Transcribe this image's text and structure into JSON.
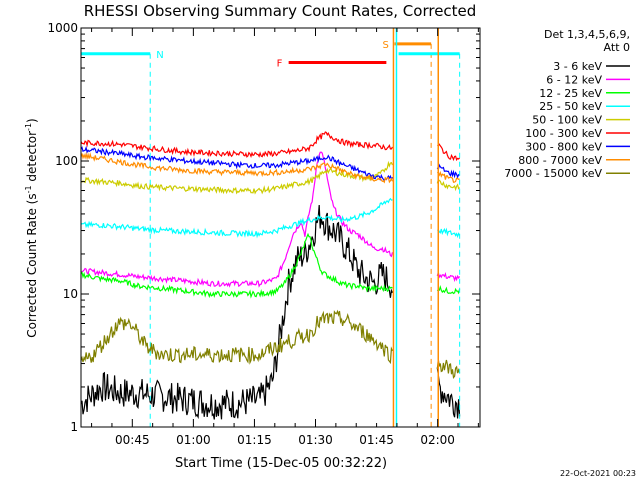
{
  "chart_data": {
    "type": "line",
    "title": "RHESSI Observing Summary Count Rates, Corrected",
    "xlabel": "Start Time (15-Dec-05 00:32:22)",
    "ylabel": "Corrected Count Rate (s⁻¹ detector⁻¹)",
    "ylabel_main": "Corrected Count Rate (s",
    "ylabel_mid": " detector",
    "ylabel_sup": "-1",
    "ylabel_end": ")",
    "yscale": "log",
    "ylim": [
      1,
      1000
    ],
    "xlim_minutes": [
      0,
      98
    ],
    "y_ticks": [
      {
        "value": 1,
        "label": "1"
      },
      {
        "value": 10,
        "label": "10"
      },
      {
        "value": 100,
        "label": "100"
      },
      {
        "value": 1000,
        "label": "1000"
      }
    ],
    "x_ticks": [
      {
        "minute": 12.6,
        "label": "00:45"
      },
      {
        "minute": 27.6,
        "label": "01:00"
      },
      {
        "minute": 42.6,
        "label": "01:15"
      },
      {
        "minute": 57.6,
        "label": "01:30"
      },
      {
        "minute": 72.6,
        "label": "01:45"
      },
      {
        "minute": 87.6,
        "label": "02:00"
      }
    ],
    "legend_title": [
      "Det 1,3,4,5,6,9,",
      "Att 0"
    ],
    "legend_placement": "right",
    "footer": "22-Oct-2021 00:23",
    "night_gaps": [
      [
        76.5,
        87.5
      ]
    ],
    "series": [
      {
        "name": "3 - 6 keV",
        "color": "#000000",
        "points": [
          [
            0,
            1.5
          ],
          [
            5,
            2.0
          ],
          [
            10,
            1.8
          ],
          [
            14,
            1.8
          ],
          [
            20,
            1.7
          ],
          [
            26,
            1.6
          ],
          [
            32,
            1.5
          ],
          [
            38,
            1.5
          ],
          [
            44,
            1.6
          ],
          [
            47,
            2.2
          ],
          [
            49,
            5
          ],
          [
            51,
            12
          ],
          [
            53,
            18
          ],
          [
            55,
            20
          ],
          [
            57,
            28
          ],
          [
            58,
            35
          ],
          [
            59,
            40
          ],
          [
            60,
            35
          ],
          [
            61,
            32
          ],
          [
            62,
            30
          ],
          [
            64,
            25
          ],
          [
            66,
            20
          ],
          [
            68,
            15
          ],
          [
            70,
            13
          ],
          [
            72,
            12
          ],
          [
            73,
            13
          ],
          [
            74,
            14
          ],
          [
            75,
            13
          ],
          [
            76,
            12
          ],
          [
            88,
            2.0
          ],
          [
            91,
            1.6
          ],
          [
            93,
            1.5
          ]
        ]
      },
      {
        "name": "6 - 12 keV",
        "color": "#ff00ff",
        "points": [
          [
            0,
            15
          ],
          [
            5,
            14.5
          ],
          [
            10,
            14
          ],
          [
            14,
            13.5
          ],
          [
            20,
            13
          ],
          [
            26,
            12.5
          ],
          [
            32,
            12
          ],
          [
            38,
            12
          ],
          [
            44,
            12
          ],
          [
            48,
            13
          ],
          [
            50,
            18
          ],
          [
            52,
            28
          ],
          [
            54,
            35
          ],
          [
            55,
            28
          ],
          [
            56,
            40
          ],
          [
            57,
            55
          ],
          [
            58,
            100
          ],
          [
            59,
            120
          ],
          [
            60,
            90
          ],
          [
            61,
            60
          ],
          [
            62,
            45
          ],
          [
            64,
            35
          ],
          [
            66,
            30
          ],
          [
            68,
            28
          ],
          [
            70,
            25
          ],
          [
            72,
            22
          ],
          [
            74,
            22
          ],
          [
            76,
            20
          ],
          [
            88,
            14
          ],
          [
            90,
            13.5
          ],
          [
            93,
            13
          ]
        ]
      },
      {
        "name": "12 - 25 keV",
        "color": "#00ff00",
        "points": [
          [
            0,
            14
          ],
          [
            5,
            13
          ],
          [
            10,
            12.5
          ],
          [
            14,
            11.5
          ],
          [
            20,
            11
          ],
          [
            26,
            10.5
          ],
          [
            32,
            10
          ],
          [
            38,
            10
          ],
          [
            44,
            10
          ],
          [
            48,
            10.5
          ],
          [
            50,
            12
          ],
          [
            52,
            15
          ],
          [
            54,
            20
          ],
          [
            55,
            24
          ],
          [
            56,
            28
          ],
          [
            57,
            22
          ],
          [
            58,
            18
          ],
          [
            59,
            15
          ],
          [
            60,
            14
          ],
          [
            62,
            13
          ],
          [
            64,
            12
          ],
          [
            66,
            11.5
          ],
          [
            68,
            11.5
          ],
          [
            70,
            11
          ],
          [
            72,
            11
          ],
          [
            74,
            11
          ],
          [
            76,
            11
          ],
          [
            88,
            11
          ],
          [
            90,
            10.5
          ],
          [
            93,
            10.5
          ]
        ]
      },
      {
        "name": "25 - 50 keV",
        "color": "#00ffff",
        "points": [
          [
            0,
            33
          ],
          [
            5,
            33
          ],
          [
            10,
            32
          ],
          [
            14,
            31
          ],
          [
            20,
            30
          ],
          [
            26,
            29.5
          ],
          [
            32,
            29
          ],
          [
            38,
            28.5
          ],
          [
            44,
            28.5
          ],
          [
            48,
            30
          ],
          [
            52,
            33
          ],
          [
            56,
            36
          ],
          [
            60,
            38
          ],
          [
            62,
            37
          ],
          [
            64,
            36
          ],
          [
            66,
            37
          ],
          [
            68,
            38
          ],
          [
            70,
            40
          ],
          [
            72,
            43
          ],
          [
            74,
            47
          ],
          [
            76,
            52
          ],
          [
            88,
            30
          ],
          [
            90,
            29
          ],
          [
            93,
            28
          ]
        ]
      },
      {
        "name": "50 - 100 keV",
        "color": "#cccc00",
        "points": [
          [
            0,
            72
          ],
          [
            5,
            70
          ],
          [
            10,
            68
          ],
          [
            14,
            65
          ],
          [
            20,
            63
          ],
          [
            26,
            62
          ],
          [
            32,
            61
          ],
          [
            38,
            60
          ],
          [
            44,
            60
          ],
          [
            48,
            62
          ],
          [
            52,
            66
          ],
          [
            56,
            70
          ],
          [
            58,
            75
          ],
          [
            60,
            85
          ],
          [
            62,
            83
          ],
          [
            64,
            80
          ],
          [
            66,
            78
          ],
          [
            68,
            76
          ],
          [
            70,
            74
          ],
          [
            72,
            75
          ],
          [
            74,
            82
          ],
          [
            76,
            98
          ],
          [
            88,
            70
          ],
          [
            90,
            65
          ],
          [
            93,
            63
          ]
        ]
      },
      {
        "name": "100 - 300 keV",
        "color": "#ff0000",
        "points": [
          [
            0,
            137
          ],
          [
            5,
            136
          ],
          [
            10,
            133
          ],
          [
            14,
            128
          ],
          [
            20,
            122
          ],
          [
            26,
            117
          ],
          [
            32,
            115
          ],
          [
            38,
            113
          ],
          [
            44,
            112
          ],
          [
            48,
            114
          ],
          [
            52,
            118
          ],
          [
            56,
            125
          ],
          [
            58,
            145
          ],
          [
            60,
            160
          ],
          [
            62,
            150
          ],
          [
            64,
            140
          ],
          [
            66,
            135
          ],
          [
            68,
            133
          ],
          [
            70,
            132
          ],
          [
            72,
            131
          ],
          [
            74,
            128
          ],
          [
            76,
            125
          ],
          [
            88,
            130
          ],
          [
            90,
            110
          ],
          [
            93,
            103
          ]
        ]
      },
      {
        "name": "300 - 800 keV",
        "color": "#0000ff",
        "points": [
          [
            0,
            122
          ],
          [
            5,
            118
          ],
          [
            10,
            113
          ],
          [
            14,
            108
          ],
          [
            20,
            104
          ],
          [
            26,
            100
          ],
          [
            32,
            97
          ],
          [
            38,
            94
          ],
          [
            44,
            92
          ],
          [
            48,
            93
          ],
          [
            52,
            97
          ],
          [
            56,
            100
          ],
          [
            58,
            103
          ],
          [
            60,
            108
          ],
          [
            62,
            102
          ],
          [
            64,
            95
          ],
          [
            66,
            90
          ],
          [
            68,
            85
          ],
          [
            70,
            80
          ],
          [
            72,
            77
          ],
          [
            74,
            75
          ],
          [
            76,
            74
          ],
          [
            88,
            90
          ],
          [
            90,
            82
          ],
          [
            93,
            78
          ]
        ]
      },
      {
        "name": "800 - 7000 keV",
        "color": "#ff8c00",
        "points": [
          [
            0,
            110
          ],
          [
            5,
            104
          ],
          [
            10,
            98
          ],
          [
            14,
            93
          ],
          [
            20,
            88
          ],
          [
            26,
            85
          ],
          [
            32,
            83
          ],
          [
            38,
            82
          ],
          [
            44,
            81
          ],
          [
            48,
            82
          ],
          [
            52,
            84
          ],
          [
            56,
            87
          ],
          [
            58,
            90
          ],
          [
            60,
            95
          ],
          [
            62,
            90
          ],
          [
            64,
            85
          ],
          [
            66,
            80
          ],
          [
            68,
            77
          ],
          [
            70,
            75
          ],
          [
            72,
            73
          ],
          [
            74,
            72
          ],
          [
            76,
            72
          ],
          [
            88,
            80
          ],
          [
            90,
            74
          ],
          [
            93,
            70
          ]
        ]
      },
      {
        "name": "7000 - 15000 keV",
        "color": "#808000",
        "points": [
          [
            0,
            3.0
          ],
          [
            3,
            3.5
          ],
          [
            6,
            4.5
          ],
          [
            9,
            6
          ],
          [
            12,
            6
          ],
          [
            14,
            5
          ],
          [
            16,
            4
          ],
          [
            20,
            3.5
          ],
          [
            26,
            3.5
          ],
          [
            32,
            3.5
          ],
          [
            38,
            3.5
          ],
          [
            44,
            3.5
          ],
          [
            48,
            4.0
          ],
          [
            52,
            4.5
          ],
          [
            56,
            5
          ],
          [
            58,
            6
          ],
          [
            60,
            6.5
          ],
          [
            62,
            6.5
          ],
          [
            64,
            6.5
          ],
          [
            66,
            6
          ],
          [
            68,
            5.5
          ],
          [
            70,
            5
          ],
          [
            72,
            4.5
          ],
          [
            74,
            4
          ],
          [
            76,
            3.5
          ],
          [
            88,
            3.0
          ],
          [
            90,
            2.8
          ],
          [
            93,
            2.5
          ]
        ]
      }
    ],
    "annotations": [
      {
        "label": "N",
        "color": "#00ffff",
        "x_start": 0,
        "x_end": 17,
        "level": 640,
        "marker_minute": 17
      },
      {
        "label": "F",
        "color": "#ff0000",
        "x_start": 51,
        "x_end": 75,
        "level": 550
      },
      {
        "label": "S",
        "color": "#ff8c00",
        "x_start": 77,
        "x_end": 86,
        "level": 760,
        "marker_minute": 86
      },
      {
        "label": "",
        "color": "#00ffff",
        "x_start": 78,
        "x_end": 93,
        "level": 640,
        "marker_minute": 93
      }
    ]
  }
}
